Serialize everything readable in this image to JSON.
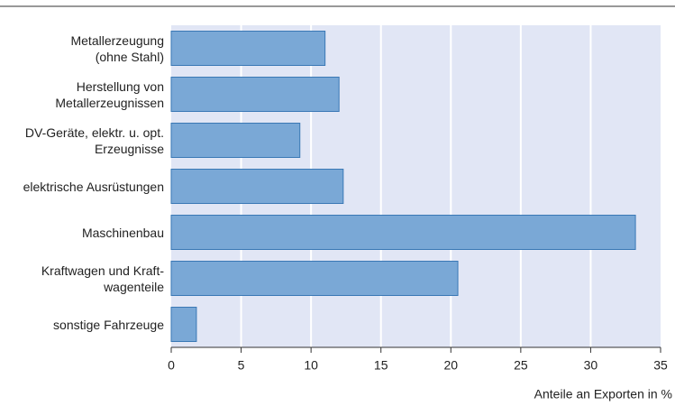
{
  "chart_data": {
    "type": "bar",
    "orientation": "horizontal",
    "x_label": "Anteile an Exporten in %",
    "categories": [
      "Metallerzeugung\n(ohne Stahl)",
      "Herstellung von\nMetallerzeugnissen",
      "DV-Geräte, elektr. u. opt.\nErzeugnisse",
      "elektrische Ausrüstungen",
      "Maschinenbau",
      "Kraftwagen und Kraft-\nwagenteile",
      "sonstige Fahrzeuge"
    ],
    "values": [
      11,
      12,
      9.2,
      12.3,
      33.2,
      20.5,
      1.8
    ],
    "color": "#7aa8d6",
    "xlim": [
      0,
      35
    ],
    "xticks": [
      0,
      5,
      10,
      15,
      20,
      25,
      30,
      35
    ],
    "grid": true
  }
}
